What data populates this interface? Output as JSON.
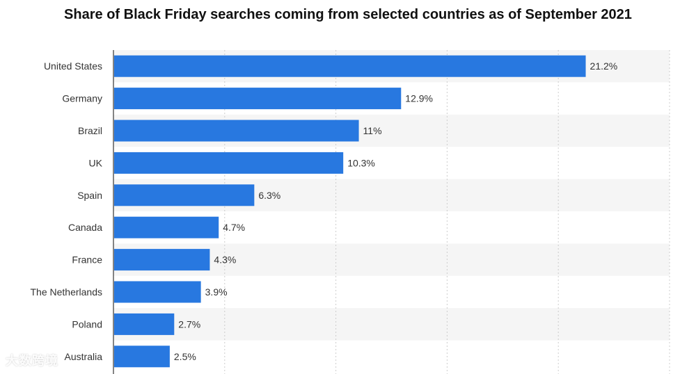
{
  "chart_data": {
    "type": "bar",
    "orientation": "horizontal",
    "title": "Share of Black Friday searches coming from selected countries as of September 2021",
    "categories": [
      "United States",
      "Germany",
      "Brazil",
      "UK",
      "Spain",
      "Canada",
      "France",
      "The Netherlands",
      "Poland",
      "Australia"
    ],
    "values": [
      21.2,
      12.9,
      11,
      10.3,
      6.3,
      4.7,
      4.3,
      3.9,
      2.7,
      2.5
    ],
    "value_labels": [
      "21.2%",
      "12.9%",
      "11%",
      "10.3%",
      "6.3%",
      "4.7%",
      "4.3%",
      "3.9%",
      "2.7%",
      "2.5%"
    ],
    "xlabel": "",
    "ylabel": "",
    "xlim": [
      0,
      25
    ],
    "grid": true,
    "legend": "none",
    "colors": {
      "bar": "#2878e0",
      "band": "#f5f5f5",
      "grid": "#cccccc",
      "axis": "#333333",
      "label_text": "#333333"
    }
  },
  "watermark": {
    "text": "大数跨境"
  }
}
